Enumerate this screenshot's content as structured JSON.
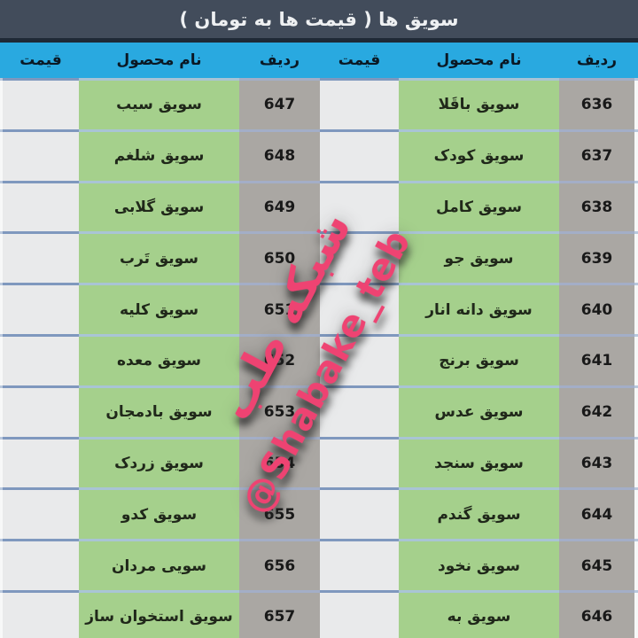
{
  "title": "سویق ها ( قیمت ها به تومان )",
  "columns": {
    "row": "ردیف",
    "product": "نام محصول",
    "price": "قیمت"
  },
  "right_table": {
    "rows": [
      {
        "no": "636",
        "product": "سویق باقَلا",
        "price": ""
      },
      {
        "no": "637",
        "product": "سویق کودک",
        "price": ""
      },
      {
        "no": "638",
        "product": "سویق کامل",
        "price": ""
      },
      {
        "no": "639",
        "product": "سویق جو",
        "price": ""
      },
      {
        "no": "640",
        "product": "سویق دانه انار",
        "price": ""
      },
      {
        "no": "641",
        "product": "سویق برنج",
        "price": ""
      },
      {
        "no": "642",
        "product": "سویق عدس",
        "price": ""
      },
      {
        "no": "643",
        "product": "سویق سنجد",
        "price": ""
      },
      {
        "no": "644",
        "product": "سویق گندم",
        "price": ""
      },
      {
        "no": "645",
        "product": "سویق نخود",
        "price": ""
      },
      {
        "no": "646",
        "product": "سویق به",
        "price": ""
      }
    ]
  },
  "left_table": {
    "rows": [
      {
        "no": "647",
        "product": "سویق سیب",
        "price": ""
      },
      {
        "no": "648",
        "product": "سویق شلغم",
        "price": ""
      },
      {
        "no": "649",
        "product": "سویق گلابی",
        "price": ""
      },
      {
        "no": "650",
        "product": "سویق تَرب",
        "price": ""
      },
      {
        "no": "651",
        "product": "سویق کلیه",
        "price": ""
      },
      {
        "no": "652",
        "product": "سویق معده",
        "price": ""
      },
      {
        "no": "653",
        "product": "سویق بادمجان",
        "price": ""
      },
      {
        "no": "654",
        "product": "سویق زردک",
        "price": ""
      },
      {
        "no": "655",
        "product": "سویق کدو",
        "price": ""
      },
      {
        "no": "656",
        "product": "سویی مردان",
        "price": ""
      },
      {
        "no": "657",
        "product": "سویق استخوان ساز",
        "price": ""
      }
    ]
  },
  "watermark": {
    "persian": "شبکه طب",
    "latin": "@Shabake_teb"
  },
  "colors": {
    "title_bar": "#424c5b",
    "header_blue": "#29a9e0",
    "green_cell": "#a5d08c",
    "gray_cell": "#aaa7a3",
    "price_cell": "#e9eaeb",
    "watermark_pink": "#ee4372"
  }
}
